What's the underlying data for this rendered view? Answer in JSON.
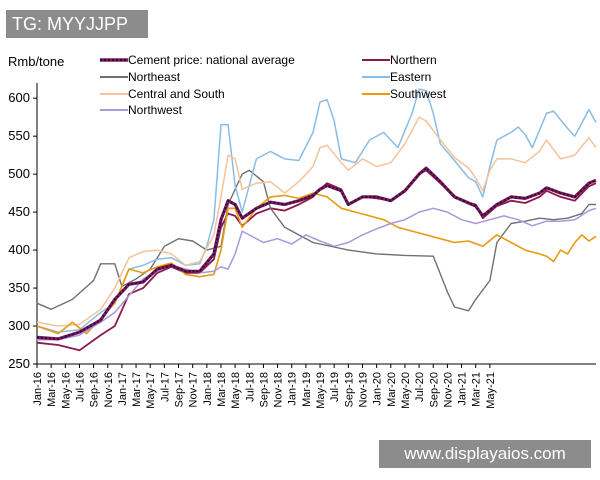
{
  "overlay": {
    "tag_text": "TG: MYYJJPP",
    "watermark_text": "www.displayaios.com"
  },
  "chart_data": {
    "type": "line",
    "ylabel": "Rmb/tone",
    "ylim": [
      250,
      620
    ],
    "yticks": [
      250,
      300,
      350,
      400,
      450,
      500,
      550,
      600
    ],
    "x_tick_labels": [
      "Jan-16",
      "Mar-16",
      "May-16",
      "Jul-16",
      "Sep-16",
      "Nov-16",
      "Jan-17",
      "Mar-17",
      "May-17",
      "Jul-17",
      "Sep-17",
      "Nov-17",
      "Jan-18",
      "Mar-18",
      "May-18",
      "Jul-18",
      "Sep-18",
      "Nov-18",
      "Jan-19",
      "Mar-19",
      "May-19",
      "Jul-19",
      "Sep-19",
      "Nov-19",
      "Jan-20",
      "Mar-20",
      "May-20",
      "Jul-20",
      "Sep-20",
      "Nov-20",
      "Jan-21",
      "Mar-21",
      "May-21"
    ],
    "x_month_range": [
      0,
      66
    ],
    "legend_position": "top",
    "series": [
      {
        "name": "Cement price: national average",
        "color": "#1a1060",
        "dotted": true,
        "width": 2.6,
        "points": [
          [
            0,
            285
          ],
          [
            3,
            283
          ],
          [
            6,
            292
          ],
          [
            9,
            308
          ],
          [
            11,
            335
          ],
          [
            13,
            355
          ],
          [
            15,
            358
          ],
          [
            17,
            375
          ],
          [
            19,
            380
          ],
          [
            21,
            372
          ],
          [
            23,
            372
          ],
          [
            25,
            395
          ],
          [
            26,
            440
          ],
          [
            27,
            465
          ],
          [
            28,
            460
          ],
          [
            29,
            442
          ],
          [
            31,
            455
          ],
          [
            33,
            463
          ],
          [
            35,
            460
          ],
          [
            37,
            465
          ],
          [
            39,
            472
          ],
          [
            40,
            480
          ],
          [
            41,
            485
          ],
          [
            43,
            478
          ],
          [
            44,
            460
          ],
          [
            46,
            470
          ],
          [
            48,
            470
          ],
          [
            50,
            465
          ],
          [
            52,
            478
          ],
          [
            54,
            500
          ],
          [
            55,
            508
          ],
          [
            57,
            490
          ],
          [
            59,
            470
          ],
          [
            61,
            462
          ],
          [
            62,
            458
          ],
          [
            63,
            445
          ],
          [
            65,
            460
          ],
          [
            67,
            470
          ],
          [
            69,
            468
          ],
          [
            71,
            475
          ],
          [
            72,
            482
          ],
          [
            74,
            475
          ],
          [
            76,
            470
          ],
          [
            78,
            488
          ],
          [
            79,
            492
          ]
        ]
      },
      {
        "name": "Northern",
        "color": "#8b1a4a",
        "width": 1.8,
        "points": [
          [
            0,
            278
          ],
          [
            3,
            275
          ],
          [
            6,
            268
          ],
          [
            9,
            288
          ],
          [
            11,
            300
          ],
          [
            13,
            342
          ],
          [
            15,
            350
          ],
          [
            17,
            370
          ],
          [
            19,
            378
          ],
          [
            21,
            370
          ],
          [
            23,
            370
          ],
          [
            25,
            388
          ],
          [
            26,
            430
          ],
          [
            27,
            448
          ],
          [
            28,
            445
          ],
          [
            29,
            432
          ],
          [
            31,
            448
          ],
          [
            33,
            455
          ],
          [
            35,
            452
          ],
          [
            37,
            460
          ],
          [
            39,
            470
          ],
          [
            40,
            480
          ],
          [
            41,
            488
          ],
          [
            43,
            480
          ],
          [
            44,
            460
          ],
          [
            46,
            470
          ],
          [
            48,
            468
          ],
          [
            50,
            465
          ],
          [
            52,
            478
          ],
          [
            54,
            500
          ],
          [
            55,
            505
          ],
          [
            57,
            488
          ],
          [
            59,
            470
          ],
          [
            61,
            462
          ],
          [
            62,
            460
          ],
          [
            63,
            442
          ],
          [
            65,
            458
          ],
          [
            67,
            465
          ],
          [
            69,
            462
          ],
          [
            71,
            470
          ],
          [
            72,
            478
          ],
          [
            74,
            470
          ],
          [
            76,
            465
          ],
          [
            78,
            484
          ],
          [
            79,
            488
          ]
        ]
      },
      {
        "name": "Northeast",
        "color": "#707070",
        "width": 1.4,
        "points": [
          [
            0,
            330
          ],
          [
            2,
            322
          ],
          [
            5,
            335
          ],
          [
            8,
            360
          ],
          [
            9,
            382
          ],
          [
            11,
            382
          ],
          [
            12,
            352
          ],
          [
            14,
            362
          ],
          [
            16,
            375
          ],
          [
            18,
            405
          ],
          [
            20,
            415
          ],
          [
            22,
            412
          ],
          [
            24,
            400
          ],
          [
            26,
            405
          ],
          [
            27,
            460
          ],
          [
            29,
            500
          ],
          [
            30,
            505
          ],
          [
            32,
            490
          ],
          [
            33,
            455
          ],
          [
            35,
            430
          ],
          [
            37,
            420
          ],
          [
            39,
            410
          ],
          [
            41,
            406
          ],
          [
            44,
            400
          ],
          [
            48,
            395
          ],
          [
            52,
            393
          ],
          [
            56,
            392
          ],
          [
            58,
            345
          ],
          [
            59,
            325
          ],
          [
            61,
            320
          ],
          [
            62,
            335
          ],
          [
            64,
            360
          ],
          [
            65,
            410
          ],
          [
            67,
            435
          ],
          [
            69,
            438
          ],
          [
            71,
            442
          ],
          [
            73,
            440
          ],
          [
            75,
            442
          ],
          [
            77,
            448
          ],
          [
            78,
            460
          ],
          [
            79,
            460
          ]
        ]
      },
      {
        "name": "Eastern",
        "color": "#88bde8",
        "width": 1.5,
        "points": [
          [
            0,
            300
          ],
          [
            3,
            292
          ],
          [
            6,
            295
          ],
          [
            9,
            318
          ],
          [
            11,
            330
          ],
          [
            13,
            375
          ],
          [
            15,
            380
          ],
          [
            17,
            388
          ],
          [
            19,
            390
          ],
          [
            21,
            380
          ],
          [
            23,
            382
          ],
          [
            24,
            405
          ],
          [
            25,
            440
          ],
          [
            26,
            565
          ],
          [
            27,
            565
          ],
          [
            28,
            485
          ],
          [
            29,
            450
          ],
          [
            31,
            520
          ],
          [
            33,
            530
          ],
          [
            35,
            520
          ],
          [
            37,
            518
          ],
          [
            39,
            555
          ],
          [
            40,
            595
          ],
          [
            41,
            598
          ],
          [
            42,
            570
          ],
          [
            43,
            520
          ],
          [
            45,
            515
          ],
          [
            47,
            545
          ],
          [
            49,
            555
          ],
          [
            51,
            535
          ],
          [
            53,
            580
          ],
          [
            54,
            612
          ],
          [
            55,
            610
          ],
          [
            56,
            580
          ],
          [
            57,
            540
          ],
          [
            59,
            518
          ],
          [
            61,
            495
          ],
          [
            62,
            490
          ],
          [
            63,
            470
          ],
          [
            64,
            510
          ],
          [
            65,
            545
          ],
          [
            67,
            555
          ],
          [
            68,
            562
          ],
          [
            69,
            552
          ],
          [
            70,
            535
          ],
          [
            72,
            580
          ],
          [
            73,
            583
          ],
          [
            75,
            560
          ],
          [
            76,
            550
          ],
          [
            78,
            585
          ],
          [
            79,
            568
          ]
        ]
      },
      {
        "name": "Central and South",
        "color": "#f4c39a",
        "width": 1.5,
        "points": [
          [
            0,
            305
          ],
          [
            3,
            300
          ],
          [
            6,
            302
          ],
          [
            9,
            322
          ],
          [
            11,
            350
          ],
          [
            13,
            390
          ],
          [
            15,
            398
          ],
          [
            17,
            400
          ],
          [
            19,
            395
          ],
          [
            21,
            380
          ],
          [
            23,
            385
          ],
          [
            25,
            420
          ],
          [
            26,
            470
          ],
          [
            27,
            525
          ],
          [
            28,
            520
          ],
          [
            29,
            480
          ],
          [
            31,
            488
          ],
          [
            33,
            490
          ],
          [
            35,
            475
          ],
          [
            37,
            490
          ],
          [
            39,
            510
          ],
          [
            40,
            535
          ],
          [
            41,
            538
          ],
          [
            43,
            515
          ],
          [
            44,
            505
          ],
          [
            46,
            520
          ],
          [
            48,
            510
          ],
          [
            50,
            515
          ],
          [
            52,
            540
          ],
          [
            54,
            575
          ],
          [
            55,
            570
          ],
          [
            57,
            545
          ],
          [
            59,
            522
          ],
          [
            61,
            508
          ],
          [
            62,
            495
          ],
          [
            63,
            478
          ],
          [
            64,
            505
          ],
          [
            65,
            520
          ],
          [
            67,
            520
          ],
          [
            69,
            515
          ],
          [
            71,
            530
          ],
          [
            72,
            545
          ],
          [
            74,
            520
          ],
          [
            76,
            525
          ],
          [
            78,
            548
          ],
          [
            79,
            535
          ]
        ]
      },
      {
        "name": "Southwest",
        "color": "#e99a10",
        "width": 1.6,
        "points": [
          [
            0,
            300
          ],
          [
            3,
            290
          ],
          [
            5,
            305
          ],
          [
            7,
            290
          ],
          [
            9,
            310
          ],
          [
            11,
            330
          ],
          [
            13,
            375
          ],
          [
            15,
            370
          ],
          [
            17,
            378
          ],
          [
            19,
            383
          ],
          [
            21,
            368
          ],
          [
            23,
            365
          ],
          [
            25,
            368
          ],
          [
            26,
            400
          ],
          [
            27,
            455
          ],
          [
            28,
            455
          ],
          [
            29,
            430
          ],
          [
            31,
            455
          ],
          [
            33,
            470
          ],
          [
            35,
            472
          ],
          [
            37,
            468
          ],
          [
            39,
            475
          ],
          [
            41,
            470
          ],
          [
            43,
            455
          ],
          [
            45,
            450
          ],
          [
            47,
            445
          ],
          [
            49,
            440
          ],
          [
            51,
            430
          ],
          [
            53,
            425
          ],
          [
            55,
            420
          ],
          [
            57,
            415
          ],
          [
            59,
            410
          ],
          [
            61,
            412
          ],
          [
            63,
            405
          ],
          [
            65,
            420
          ],
          [
            67,
            410
          ],
          [
            69,
            400
          ],
          [
            71,
            395
          ],
          [
            72,
            392
          ],
          [
            73,
            385
          ],
          [
            74,
            400
          ],
          [
            75,
            395
          ],
          [
            76,
            410
          ],
          [
            77,
            420
          ],
          [
            78,
            412
          ],
          [
            79,
            418
          ]
        ]
      },
      {
        "name": "Northwest",
        "color": "#a898dc",
        "width": 1.5,
        "points": [
          [
            0,
            282
          ],
          [
            3,
            282
          ],
          [
            6,
            288
          ],
          [
            9,
            305
          ],
          [
            11,
            318
          ],
          [
            13,
            340
          ],
          [
            15,
            362
          ],
          [
            17,
            372
          ],
          [
            19,
            380
          ],
          [
            21,
            375
          ],
          [
            23,
            370
          ],
          [
            25,
            372
          ],
          [
            26,
            378
          ],
          [
            27,
            375
          ],
          [
            28,
            395
          ],
          [
            29,
            425
          ],
          [
            30,
            420
          ],
          [
            32,
            410
          ],
          [
            34,
            415
          ],
          [
            36,
            408
          ],
          [
            38,
            420
          ],
          [
            40,
            412
          ],
          [
            42,
            405
          ],
          [
            44,
            410
          ],
          [
            46,
            420
          ],
          [
            48,
            428
          ],
          [
            50,
            435
          ],
          [
            52,
            440
          ],
          [
            54,
            450
          ],
          [
            56,
            455
          ],
          [
            58,
            450
          ],
          [
            60,
            440
          ],
          [
            62,
            435
          ],
          [
            64,
            440
          ],
          [
            66,
            445
          ],
          [
            68,
            440
          ],
          [
            70,
            432
          ],
          [
            72,
            438
          ],
          [
            74,
            438
          ],
          [
            76,
            440
          ],
          [
            78,
            452
          ],
          [
            79,
            455
          ]
        ]
      }
    ]
  }
}
